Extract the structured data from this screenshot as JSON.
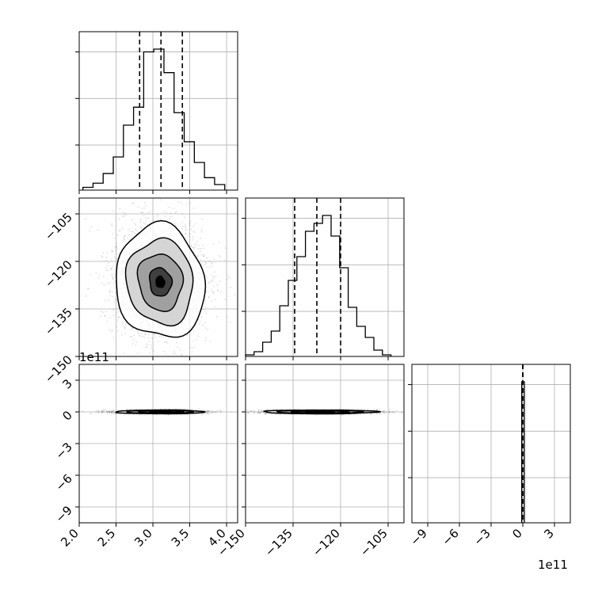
{
  "figure": {
    "offset_left": "1e11",
    "offset_bottom": "1e11"
  },
  "chart_data": {
    "type": "corner",
    "grid": true,
    "parameters": [
      {
        "range": [
          2.0,
          4.15
        ],
        "ticks": [
          2.0,
          2.5,
          3.0,
          3.5,
          4.0
        ],
        "tick_labels": [
          "2.0",
          "2.5",
          "3.0",
          "3.5",
          "4.0"
        ]
      },
      {
        "range": [
          -150,
          -100
        ],
        "ticks": [
          -150,
          -135,
          -120,
          -105
        ],
        "tick_labels": [
          "−150",
          "−135",
          "−120",
          "−105"
        ]
      },
      {
        "range": [
          -10.5,
          4.5
        ],
        "ticks": [
          -9,
          -6,
          -3,
          0,
          3
        ],
        "tick_labels": [
          "−9",
          "−6",
          "−3",
          "0",
          "3"
        ],
        "scale_offset": "1e11"
      }
    ],
    "histograms": [
      {
        "param": 0,
        "bin_edges": [
          2.05,
          2.1875,
          2.325,
          2.4625,
          2.6,
          2.7375,
          2.875,
          3.0125,
          3.15,
          3.2875,
          3.425,
          3.5625,
          3.7,
          3.8375,
          3.975
        ],
        "counts": [
          2,
          5,
          12,
          24,
          47,
          60,
          100,
          102,
          85,
          56,
          35,
          20,
          9,
          4
        ],
        "quantiles": [
          2.82,
          3.11,
          3.4
        ]
      },
      {
        "param": 1,
        "bin_edges": [
          -150,
          -147.3,
          -144.6,
          -141.9,
          -139.2,
          -136.5,
          -133.8,
          -131.1,
          -128.4,
          -125.7,
          -123,
          -120.3,
          -117.6,
          -114.9,
          -112.2,
          -109.5,
          -106.8,
          -104.1
        ],
        "counts": [
          1,
          3,
          9,
          16,
          32,
          48,
          63,
          79,
          84,
          89,
          76,
          56,
          31,
          19,
          12,
          4,
          1
        ],
        "quantiles": [
          -134.5,
          -127.5,
          -120.0
        ]
      },
      {
        "param": 2,
        "bin_edges": [
          -0.1,
          0.15
        ],
        "counts": [
          100
        ],
        "quantiles": [
          0.0,
          0.0,
          0.0
        ]
      }
    ],
    "contour_panels": [
      {
        "x_param": 0,
        "y_param": 1,
        "center": [
          3.1,
          -126.5
        ],
        "sigma_x": 0.3,
        "sigma_y": 9.0,
        "correlation": -0.15,
        "scatter": true
      },
      {
        "x_param": 0,
        "y_param": 2,
        "center": [
          3.1,
          0.0
        ],
        "sigma_x": 0.3,
        "sigma_y": 0.03,
        "correlation": 0.0,
        "scatter": true
      },
      {
        "x_param": 1,
        "y_param": 2,
        "center": [
          -126.5,
          0.0
        ],
        "sigma_x": 9.0,
        "sigma_y": 0.03,
        "correlation": 0.0,
        "scatter": true
      }
    ]
  }
}
